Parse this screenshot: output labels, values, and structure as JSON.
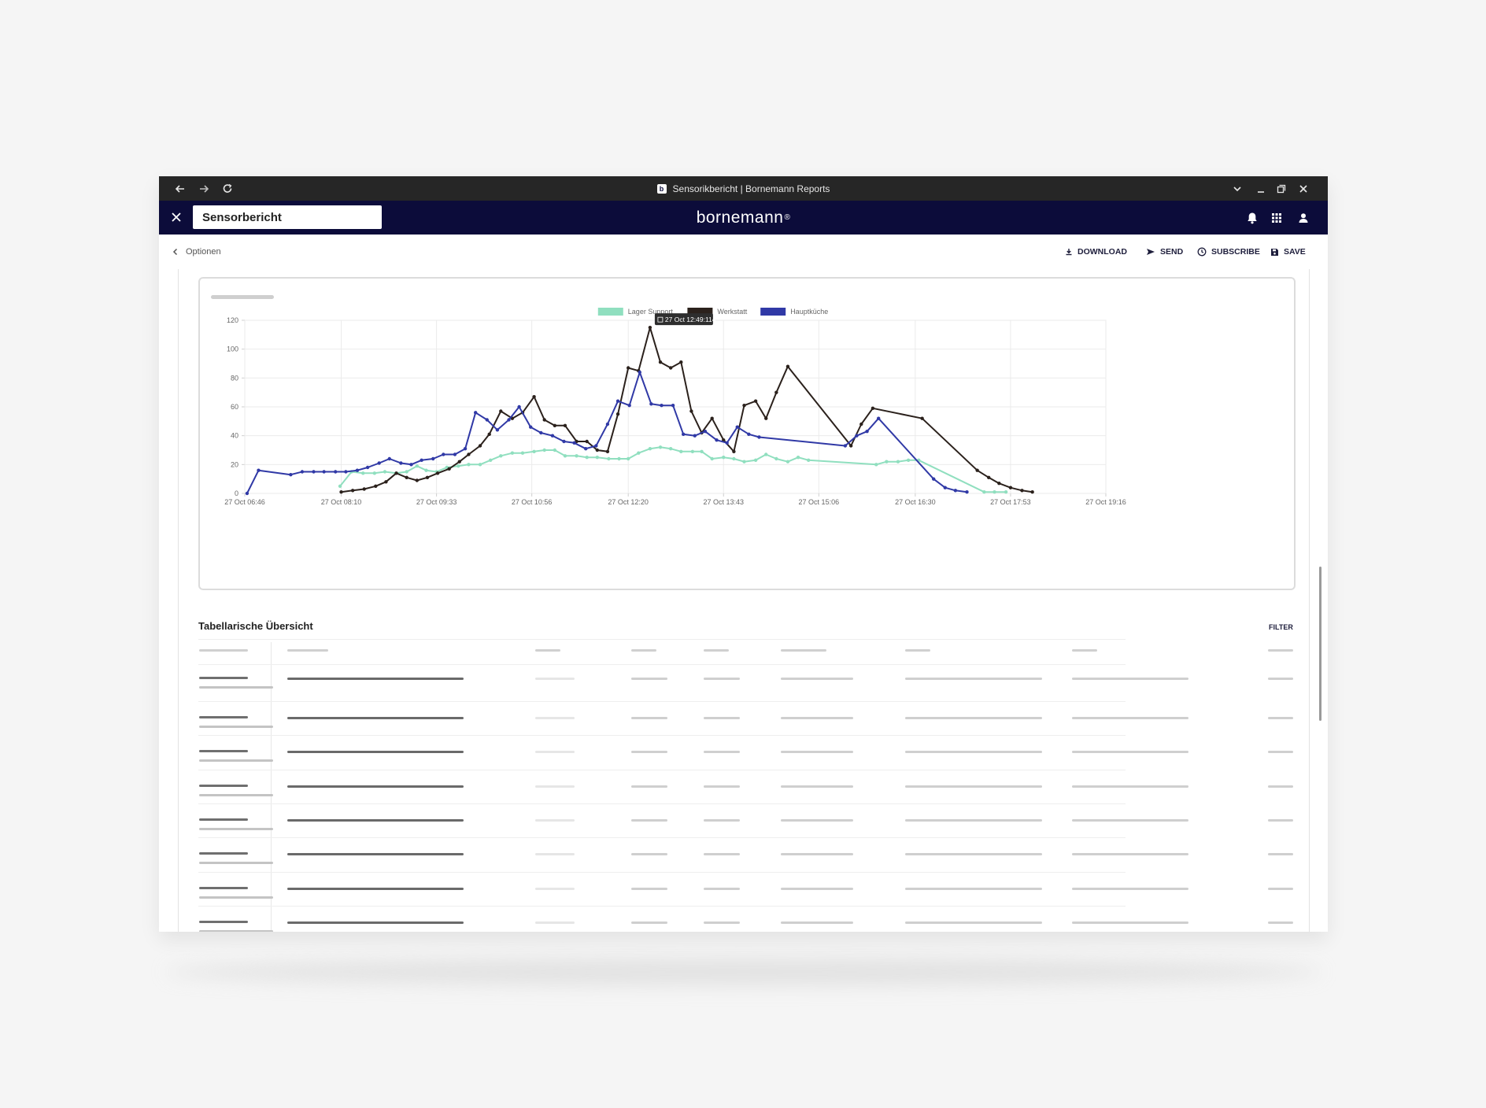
{
  "browser": {
    "tab_title": "Sensorikbericht | Bornemann Reports",
    "favicon_letter": "b"
  },
  "header": {
    "report_name": "Sensorbericht",
    "brand": "bornemann",
    "brand_mark": "®"
  },
  "toolbar": {
    "options_label": "Optionen",
    "download_label": "DOWNLOAD",
    "send_label": "SEND",
    "subscribe_label": "SUBSCRIBE",
    "save_label": "SAVE"
  },
  "table": {
    "title": "Tabellarische Übersicht",
    "filter_label": "FILTER",
    "row_count": 8
  },
  "colors": {
    "header_bg": "#0c0c3a",
    "browser_bg": "#262626",
    "lager_support": "#90dfbf",
    "werkstatt": "#2b211c",
    "hauptkueche": "#3039a6"
  },
  "chart_data": {
    "type": "line",
    "tooltip": "27 Oct 12:49:114",
    "ylim": [
      0,
      120
    ],
    "y_ticks": [
      0,
      20,
      40,
      60,
      80,
      100,
      120
    ],
    "xlim": [
      "27 Oct 06:46",
      "27 Oct 19:16"
    ],
    "x_ticks": [
      "27 Oct 06:46",
      "27 Oct 08:10",
      "27 Oct 09:33",
      "27 Oct 10:56",
      "27 Oct 12:20",
      "27 Oct 13:43",
      "27 Oct 15:06",
      "27 Oct 16:30",
      "27 Oct 17:53",
      "27 Oct 19:16"
    ],
    "grid": true,
    "legend_position": "top",
    "series": [
      {
        "name": "Lager Support",
        "color": "#90dfbf",
        "points": [
          [
            "08:09",
            5
          ],
          [
            "08:19",
            15
          ],
          [
            "08:29",
            14
          ],
          [
            "08:39",
            14
          ],
          [
            "08:48",
            15
          ],
          [
            "08:58",
            14
          ],
          [
            "09:07",
            15
          ],
          [
            "09:16",
            19
          ],
          [
            "09:24",
            16
          ],
          [
            "09:33",
            15
          ],
          [
            "09:42",
            18
          ],
          [
            "09:52",
            19
          ],
          [
            "10:01",
            20
          ],
          [
            "10:11",
            20
          ],
          [
            "10:20",
            23
          ],
          [
            "10:29",
            26
          ],
          [
            "10:39",
            28
          ],
          [
            "10:48",
            28
          ],
          [
            "10:58",
            29
          ],
          [
            "11:07",
            30
          ],
          [
            "11:16",
            30
          ],
          [
            "11:25",
            26
          ],
          [
            "11:35",
            26
          ],
          [
            "11:44",
            25
          ],
          [
            "11:53",
            25
          ],
          [
            "12:03",
            24
          ],
          [
            "12:12",
            24
          ],
          [
            "12:20",
            24
          ],
          [
            "12:29",
            28
          ],
          [
            "12:39",
            31
          ],
          [
            "12:48",
            32
          ],
          [
            "12:57",
            31
          ],
          [
            "13:06",
            29
          ],
          [
            "13:16",
            29
          ],
          [
            "13:24",
            29
          ],
          [
            "13:33",
            24
          ],
          [
            "13:43",
            25
          ],
          [
            "13:52",
            24
          ],
          [
            "14:01",
            22
          ],
          [
            "14:11",
            23
          ],
          [
            "14:20",
            27
          ],
          [
            "14:29",
            24
          ],
          [
            "14:39",
            22
          ],
          [
            "14:48",
            25
          ],
          [
            "14:57",
            23
          ],
          [
            "15:56",
            20
          ],
          [
            "16:05",
            22
          ],
          [
            "16:15",
            22
          ],
          [
            "16:24",
            23
          ],
          [
            "16:33",
            23
          ],
          [
            "17:30",
            1
          ],
          [
            "17:39",
            1
          ],
          [
            "17:49",
            1
          ]
        ]
      },
      {
        "name": "Werkstatt",
        "color": "#2b211c",
        "points": [
          [
            "08:10",
            1
          ],
          [
            "08:20",
            2
          ],
          [
            "08:30",
            3
          ],
          [
            "08:40",
            5
          ],
          [
            "08:49",
            8
          ],
          [
            "08:58",
            14
          ],
          [
            "09:07",
            11
          ],
          [
            "09:16",
            9
          ],
          [
            "09:25",
            11
          ],
          [
            "09:34",
            14
          ],
          [
            "09:44",
            17
          ],
          [
            "09:53",
            22
          ],
          [
            "10:01",
            27
          ],
          [
            "10:11",
            33
          ],
          [
            "10:19",
            41
          ],
          [
            "10:29",
            57
          ],
          [
            "10:39",
            52
          ],
          [
            "10:48",
            56
          ],
          [
            "10:58",
            67
          ],
          [
            "11:07",
            51
          ],
          [
            "11:16",
            47
          ],
          [
            "11:25",
            47
          ],
          [
            "11:35",
            36
          ],
          [
            "11:44",
            36
          ],
          [
            "11:53",
            30
          ],
          [
            "12:02",
            29
          ],
          [
            "12:11",
            55
          ],
          [
            "12:20",
            87
          ],
          [
            "12:29",
            85
          ],
          [
            "12:39",
            115
          ],
          [
            "12:48",
            91
          ],
          [
            "12:57",
            87
          ],
          [
            "13:06",
            91
          ],
          [
            "13:15",
            57
          ],
          [
            "13:24",
            42
          ],
          [
            "13:33",
            52
          ],
          [
            "13:43",
            37
          ],
          [
            "13:52",
            29
          ],
          [
            "14:01",
            61
          ],
          [
            "14:11",
            64
          ],
          [
            "14:20",
            52
          ],
          [
            "14:29",
            70
          ],
          [
            "14:39",
            88
          ],
          [
            "15:34",
            33
          ],
          [
            "15:43",
            48
          ],
          [
            "15:53",
            59
          ],
          [
            "16:36",
            52
          ],
          [
            "17:24",
            16
          ],
          [
            "17:34",
            11
          ],
          [
            "17:43",
            7
          ],
          [
            "17:53",
            4
          ],
          [
            "18:03",
            2
          ],
          [
            "18:12",
            1
          ]
        ]
      },
      {
        "name": "Hauptküche",
        "color": "#3039a6",
        "points": [
          [
            "06:48",
            0
          ],
          [
            "06:58",
            16
          ],
          [
            "07:26",
            13
          ],
          [
            "07:36",
            15
          ],
          [
            "07:46",
            15
          ],
          [
            "07:55",
            15
          ],
          [
            "08:05",
            15
          ],
          [
            "08:14",
            15
          ],
          [
            "08:24",
            16
          ],
          [
            "08:33",
            18
          ],
          [
            "08:43",
            21
          ],
          [
            "08:52",
            24
          ],
          [
            "09:02",
            21
          ],
          [
            "09:11",
            20
          ],
          [
            "09:20",
            23
          ],
          [
            "09:30",
            24
          ],
          [
            "09:39",
            27
          ],
          [
            "09:49",
            27
          ],
          [
            "09:58",
            31
          ],
          [
            "10:07",
            56
          ],
          [
            "10:17",
            51
          ],
          [
            "10:26",
            44
          ],
          [
            "10:36",
            51
          ],
          [
            "10:45",
            60
          ],
          [
            "10:55",
            46
          ],
          [
            "11:04",
            42
          ],
          [
            "11:14",
            40
          ],
          [
            "11:24",
            36
          ],
          [
            "11:33",
            35
          ],
          [
            "11:43",
            31
          ],
          [
            "11:52",
            33
          ],
          [
            "12:02",
            48
          ],
          [
            "12:11",
            64
          ],
          [
            "12:21",
            61
          ],
          [
            "12:30",
            84
          ],
          [
            "12:40",
            62
          ],
          [
            "12:49",
            61
          ],
          [
            "12:59",
            61
          ],
          [
            "13:08",
            41
          ],
          [
            "13:18",
            40
          ],
          [
            "13:27",
            43
          ],
          [
            "13:37",
            37
          ],
          [
            "13:46",
            35
          ],
          [
            "13:55",
            46
          ],
          [
            "14:05",
            41
          ],
          [
            "14:14",
            39
          ],
          [
            "15:29",
            33
          ],
          [
            "15:39",
            40
          ],
          [
            "15:48",
            43
          ],
          [
            "15:58",
            52
          ],
          [
            "16:46",
            10
          ],
          [
            "16:56",
            4
          ],
          [
            "17:05",
            2
          ],
          [
            "17:15",
            1
          ]
        ]
      }
    ]
  }
}
